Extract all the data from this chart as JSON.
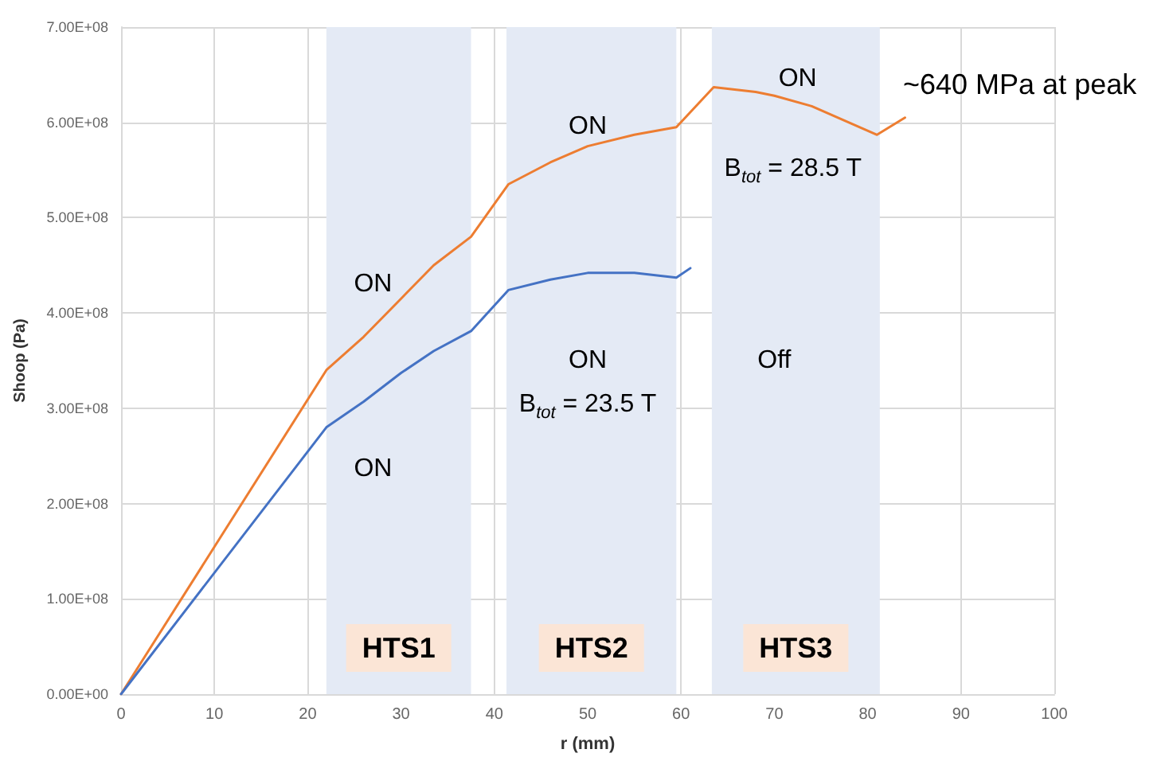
{
  "chart_data": {
    "type": "line",
    "xlabel": "r (mm)",
    "ylabel": "Shoop (Pa)",
    "xlim": [
      0,
      100
    ],
    "xticks": [
      0,
      10,
      20,
      30,
      40,
      50,
      60,
      70,
      80,
      90,
      100
    ],
    "ylim": [
      0,
      700000000
    ],
    "yticks": [
      {
        "value": 0,
        "label": "0.00E+00"
      },
      {
        "value": 100000000,
        "label": "1.00E+08"
      },
      {
        "value": 200000000,
        "label": "2.00E+08"
      },
      {
        "value": 300000000,
        "label": "3.00E+08"
      },
      {
        "value": 400000000,
        "label": "4.00E+08"
      },
      {
        "value": 500000000,
        "label": "5.00E+08"
      },
      {
        "value": 600000000,
        "label": "6.00E+08"
      },
      {
        "value": 700000000,
        "label": "7.00E+08"
      }
    ],
    "grid": true,
    "marker": "none",
    "line_style": "solid",
    "series": [
      {
        "color": "#ed7d31",
        "x": [
          0,
          22,
          26,
          30,
          33.5,
          37.5,
          41.5,
          46,
          50,
          55,
          59.5,
          63.5,
          68,
          70,
          74,
          81,
          84
        ],
        "values": [
          0,
          340000000,
          375000000,
          415000000,
          450000000,
          480000000,
          535000000,
          558000000,
          575000000,
          587000000,
          595000000,
          637000000,
          632000000,
          628000000,
          617000000,
          587000000,
          605000000
        ]
      },
      {
        "color": "#4472c4",
        "x": [
          0,
          22,
          26,
          30,
          33.5,
          37.5,
          41.5,
          46,
          50,
          55,
          59.5,
          61
        ],
        "values": [
          0,
          280000000,
          307000000,
          337000000,
          360000000,
          381000000,
          424000000,
          435000000,
          442000000,
          442000000,
          437000000,
          447000000
        ]
      }
    ],
    "bands": [
      {
        "axis": "x",
        "from": 22,
        "to": 37.5,
        "label": "HTS1",
        "color": "#e4eaf5"
      },
      {
        "axis": "x",
        "from": 41.3,
        "to": 59.5,
        "label": "HTS2",
        "color": "#e4eaf5"
      },
      {
        "axis": "x",
        "from": 63.3,
        "to": 81.3,
        "label": "HTS3",
        "color": "#e4eaf5"
      }
    ],
    "annotations": [
      "ON",
      "ON",
      "ON",
      "B$_{tot}$ = 23.5 T",
      "ON",
      "ON",
      "B$_{tot}$ = 28.5 T",
      "Off",
      "~640 MPa at peak"
    ]
  }
}
